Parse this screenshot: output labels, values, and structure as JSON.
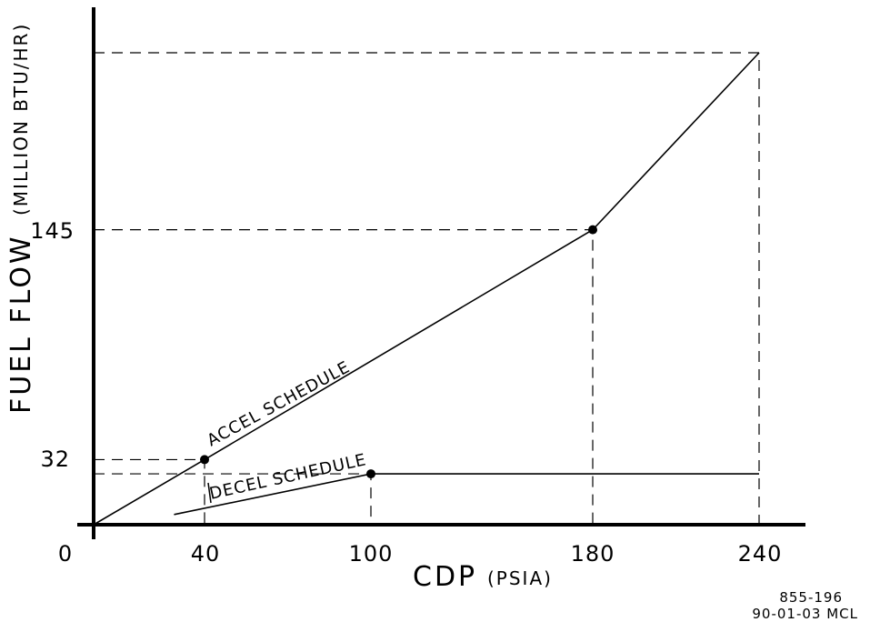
{
  "chart_data": {
    "type": "line",
    "xlabel": "CDP",
    "xunit": "(PSIA)",
    "ylabel": "FUEL FLOW",
    "yunit": "(MILLION BTU/HR)",
    "x_ticks": [
      "0",
      "40",
      "100",
      "180",
      "240"
    ],
    "y_ticks": [
      "32",
      "145"
    ],
    "xlim": [
      0,
      255
    ],
    "ylim": [
      0,
      292
    ],
    "series": [
      {
        "name": "ACCEL SCHEDULE",
        "points": [
          [
            0,
            0
          ],
          [
            40,
            32
          ],
          [
            180,
            145
          ],
          [
            240,
            232
          ]
        ],
        "markers": [
          [
            40,
            32
          ],
          [
            180,
            145
          ]
        ]
      },
      {
        "name": "DECEL SCHEDULE",
        "points": [
          [
            29,
            5
          ],
          [
            100,
            25
          ],
          [
            240,
            25
          ]
        ],
        "markers": [
          [
            100,
            25
          ]
        ]
      }
    ],
    "reference_lines": [
      [
        [
          0,
          32
        ],
        [
          40,
          32
        ],
        [
          40,
          0
        ]
      ],
      [
        [
          0,
          25
        ],
        [
          100,
          25
        ],
        [
          100,
          0
        ]
      ],
      [
        [
          0,
          145
        ],
        [
          180,
          145
        ],
        [
          180,
          0
        ]
      ],
      [
        [
          0,
          232
        ],
        [
          240,
          232
        ],
        [
          240,
          0
        ]
      ]
    ]
  },
  "drawing_id": {
    "number": "855-196",
    "date": "90-01-03 MCL"
  }
}
